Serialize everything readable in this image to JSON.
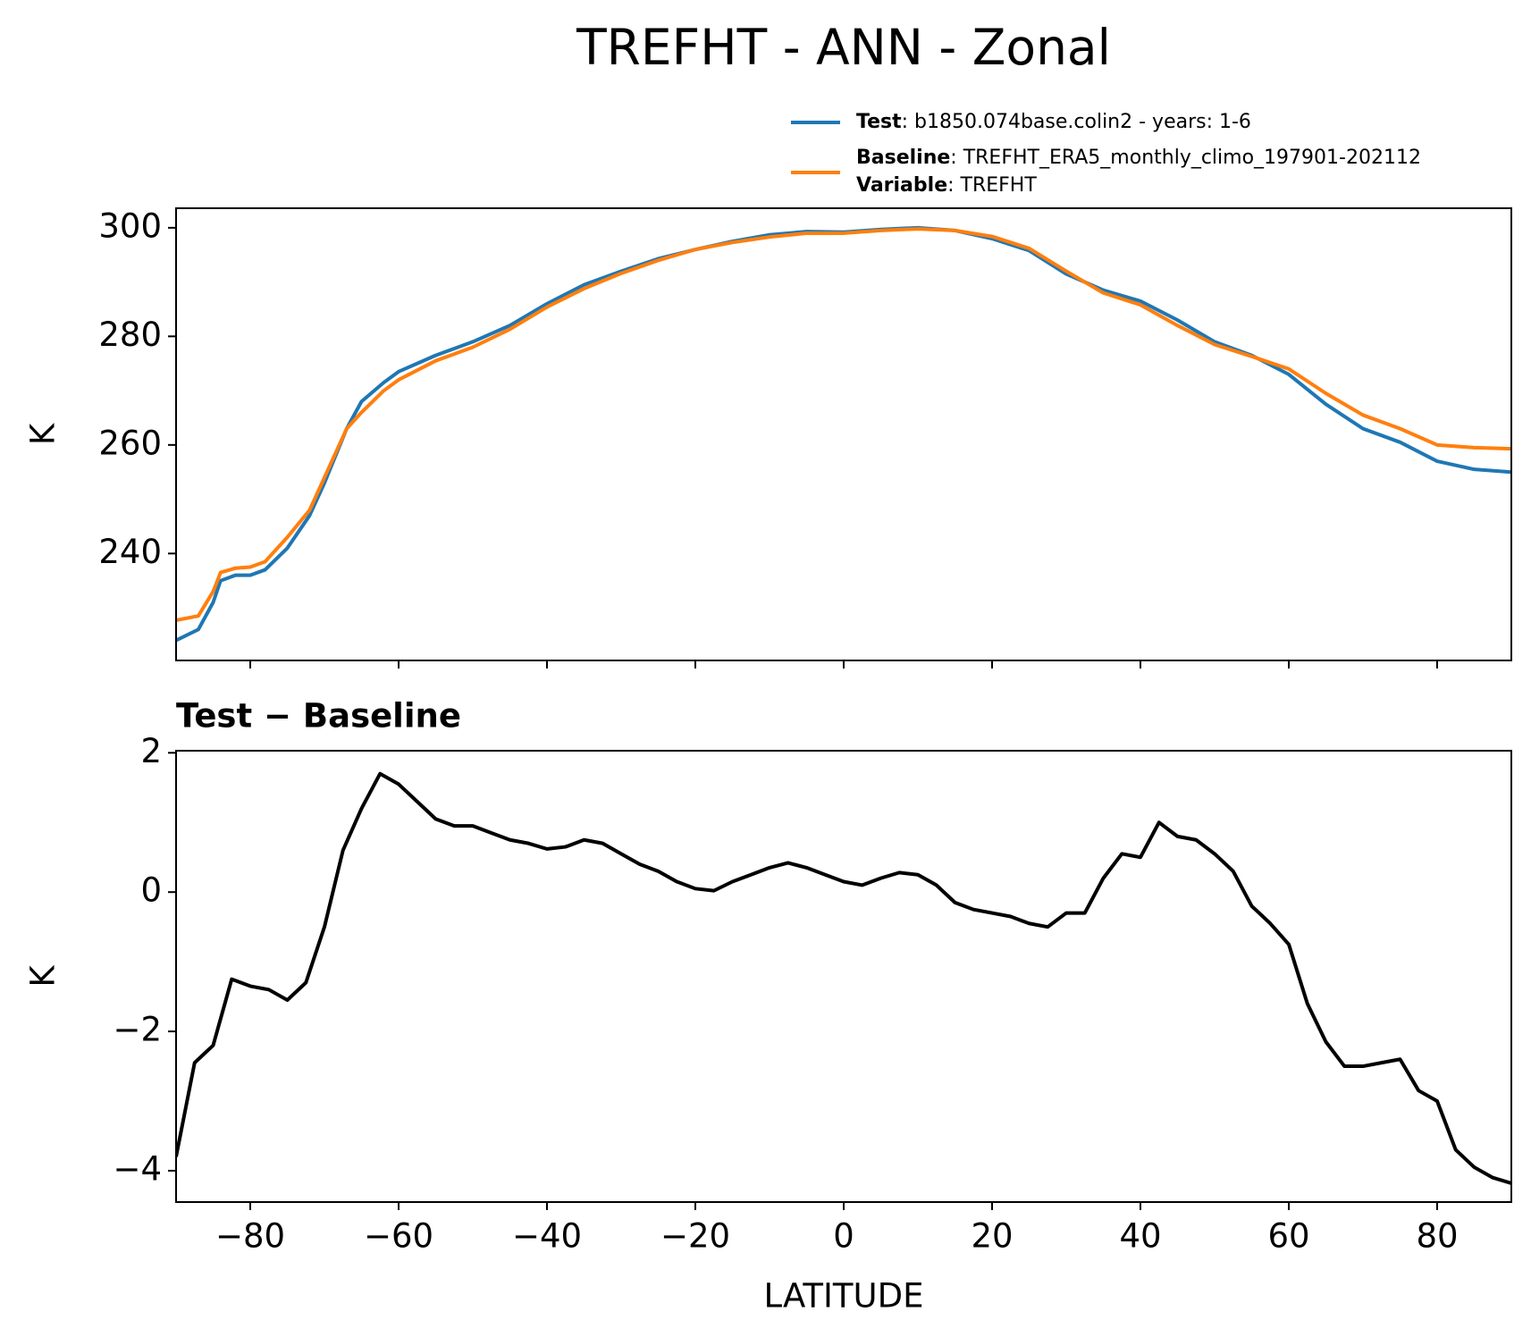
{
  "title": "TREFHT - ANN - Zonal",
  "legend": {
    "extra_name": "Variable",
    "extra_text": ": TREFHT"
  },
  "chart_data": [
    {
      "type": "line",
      "ylabel": "K",
      "x": [
        -90,
        -87,
        -85,
        -84,
        -82,
        -80,
        -78,
        -75,
        -72,
        -70,
        -67,
        -65,
        -62,
        -60,
        -55,
        -50,
        -45,
        -40,
        -35,
        -30,
        -25,
        -20,
        -15,
        -10,
        -5,
        0,
        5,
        10,
        15,
        20,
        25,
        30,
        35,
        40,
        45,
        50,
        55,
        60,
        65,
        70,
        75,
        80,
        85,
        90
      ],
      "series": [
        {
          "name": "Test",
          "description": ": b1850.074base.colin2 - years: 1-6",
          "color": "#1f77b4",
          "values": [
            224,
            226,
            231,
            235,
            236,
            236,
            237,
            241,
            247,
            253,
            263,
            268,
            271.5,
            273.5,
            276.5,
            279,
            282,
            286,
            289.5,
            292,
            294.3,
            296,
            297.5,
            298.7,
            299.3,
            299.2,
            299.7,
            300,
            299.5,
            298,
            295.8,
            291.5,
            288.5,
            286.5,
            283,
            279,
            276.5,
            273,
            267.5,
            263,
            260.5,
            257,
            255.5,
            255
          ]
        },
        {
          "name": "Baseline",
          "description": ": TREFHT_ERA5_monthly_climo_197901-202112",
          "color": "#ff7f0e",
          "values": [
            227.7,
            228.5,
            233,
            236.5,
            237.3,
            237.5,
            238.5,
            243,
            248,
            254,
            263,
            266,
            270,
            272,
            275.5,
            278,
            281.3,
            285.4,
            288.8,
            291.6,
            294,
            296,
            297.3,
            298.3,
            299,
            299,
            299.5,
            299.8,
            299.5,
            298.4,
            296.2,
            292,
            288,
            285.8,
            282,
            278.5,
            276.3,
            274,
            269.5,
            265.5,
            263,
            260,
            259.5,
            259.3
          ]
        }
      ],
      "xlim": [
        -90,
        90
      ],
      "xticks": [
        -80,
        -60,
        -40,
        -20,
        0,
        20,
        40,
        60,
        80
      ],
      "ylim": [
        220.3,
        303.6
      ],
      "yticks": [
        240,
        260,
        280,
        300
      ]
    },
    {
      "type": "line",
      "title": "Test − Baseline",
      "ylabel": "K",
      "xlabel": "LATITUDE",
      "x": [
        -90,
        -87.5,
        -85,
        -82.5,
        -80,
        -77.5,
        -75,
        -72.5,
        -70,
        -67.5,
        -65,
        -62.5,
        -60,
        -57.5,
        -55,
        -52.5,
        -50,
        -47.5,
        -45,
        -42.5,
        -40,
        -37.5,
        -35,
        -32.5,
        -30,
        -27.5,
        -25,
        -22.5,
        -20,
        -17.5,
        -15,
        -12.5,
        -10,
        -7.5,
        -5,
        -2.5,
        0,
        2.5,
        5,
        7.5,
        10,
        12.5,
        15,
        17.5,
        20,
        22.5,
        25,
        27.5,
        30,
        32.5,
        35,
        37.5,
        40,
        42.5,
        45,
        47.5,
        50,
        52.5,
        55,
        57.5,
        60,
        62.5,
        65,
        67.5,
        70,
        72.5,
        75,
        77.5,
        80,
        82.5,
        85,
        87.5,
        90
      ],
      "series": [
        {
          "name": "Test − Baseline",
          "color": "#000000",
          "values": [
            -3.8,
            -2.45,
            -2.2,
            -1.25,
            -1.35,
            -1.4,
            -1.55,
            -1.3,
            -0.5,
            0.6,
            1.2,
            1.7,
            1.55,
            1.3,
            1.05,
            0.95,
            0.95,
            0.85,
            0.75,
            0.7,
            0.62,
            0.65,
            0.75,
            0.7,
            0.55,
            0.4,
            0.3,
            0.15,
            0.05,
            0.02,
            0.15,
            0.25,
            0.35,
            0.42,
            0.35,
            0.25,
            0.15,
            0.1,
            0.2,
            0.28,
            0.25,
            0.1,
            -0.15,
            -0.25,
            -0.3,
            -0.35,
            -0.45,
            -0.5,
            -0.3,
            -0.3,
            0.2,
            0.55,
            0.5,
            1.0,
            0.8,
            0.75,
            0.55,
            0.3,
            -0.2,
            -0.45,
            -0.75,
            -1.6,
            -2.15,
            -2.5,
            -2.5,
            -2.45,
            -2.4,
            -2.85,
            -3.0,
            -3.7,
            -3.95,
            -4.1,
            -4.18
          ]
        }
      ],
      "xlim": [
        -90,
        90
      ],
      "xticks": [
        {
          "value": -80,
          "label": "−80"
        },
        {
          "value": -60,
          "label": "−60"
        },
        {
          "value": -40,
          "label": "−40"
        },
        {
          "value": -20,
          "label": "−20"
        },
        0,
        20,
        40,
        60,
        80
      ],
      "ylim": [
        -4.45,
        2.03
      ],
      "yticks": [
        {
          "value": -4,
          "label": "−4"
        },
        {
          "value": -2,
          "label": "−2"
        },
        0,
        2
      ]
    }
  ]
}
